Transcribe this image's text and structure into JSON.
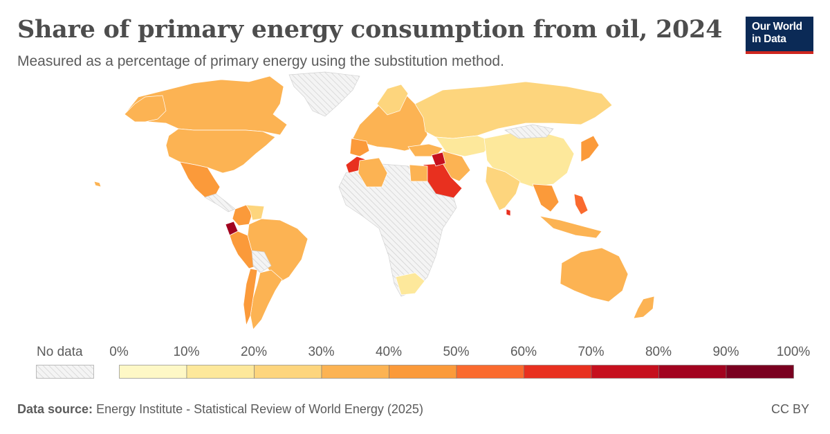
{
  "header": {
    "title": "Share of primary energy consumption from oil, 2024",
    "subtitle": "Measured as a percentage of primary energy using the substitution method."
  },
  "logo": {
    "line1": "Our World",
    "line2": "in Data"
  },
  "legend": {
    "no_data_label": "No data",
    "ticks": [
      "0%",
      "10%",
      "20%",
      "30%",
      "40%",
      "50%",
      "60%",
      "70%",
      "80%",
      "90%",
      "100%"
    ],
    "colors": [
      "#fef8c6",
      "#fde89b",
      "#fdd57d",
      "#fcb353",
      "#fb9a3a",
      "#fa6a2e",
      "#e8301f",
      "#c6101e",
      "#a2031f",
      "#7a0020"
    ]
  },
  "footer": {
    "source_label": "Data source:",
    "source_text": "Energy Institute - Statistical Review of World Energy (2025)",
    "license": "CC BY"
  },
  "map": {
    "no_data_color": "hatched-grey",
    "regions": [
      {
        "name": "North America (Canada)",
        "color": "#fcb353"
      },
      {
        "name": "United States",
        "color": "#fcb353"
      },
      {
        "name": "Mexico",
        "color": "#fb9a3a"
      },
      {
        "name": "South America",
        "color": "#fcb353"
      },
      {
        "name": "Ecuador",
        "color": "#a2031f"
      },
      {
        "name": "Europe",
        "color": "#fcb353"
      },
      {
        "name": "Russia",
        "color": "#fdd57d"
      },
      {
        "name": "China",
        "color": "#fde89b"
      },
      {
        "name": "India",
        "color": "#fdd57d"
      },
      {
        "name": "Saudi Arabia",
        "color": "#e8301f"
      },
      {
        "name": "Morocco",
        "color": "#e8301f"
      },
      {
        "name": "Australia",
        "color": "#fcb353"
      },
      {
        "name": "South Africa",
        "color": "#fde89b"
      },
      {
        "name": "Southeast Asia",
        "color": "#fb9a3a"
      }
    ]
  }
}
